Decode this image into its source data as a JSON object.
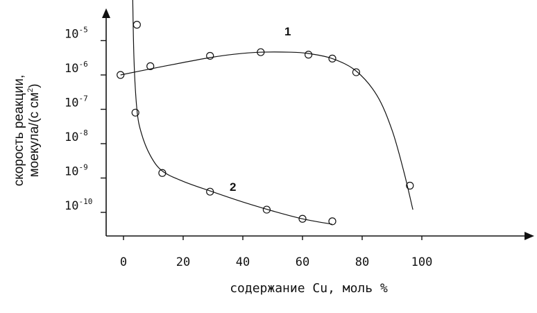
{
  "chart_data": {
    "type": "scatter",
    "title": "",
    "xlabel": "содержание Cu, моль %",
    "ylabel_line1": "скорость реакции,",
    "ylabel_line2_main": "моекула/(с см",
    "ylabel_line2_sup": "2",
    "ylabel_line2_end": ")",
    "x_ticks": [
      "0",
      "20",
      "40",
      "60",
      "80",
      "100"
    ],
    "x_tick_values": [
      0,
      20,
      40,
      60,
      80,
      100
    ],
    "y_ticks": [
      {
        "base": "10",
        "exp": "-5",
        "value": 1e-05
      },
      {
        "base": "10",
        "exp": "-6",
        "value": 1e-06
      },
      {
        "base": "10",
        "exp": "-7",
        "value": 1e-07
      },
      {
        "base": "10",
        "exp": "-8",
        "value": 1e-08
      },
      {
        "base": "10",
        "exp": "-9",
        "value": 1e-09
      },
      {
        "base": "10",
        "exp": "-10",
        "value": 1e-10
      }
    ],
    "y_scale": "log",
    "grid": false,
    "series": [
      {
        "name": "1",
        "points": [
          [
            -1,
            1e-06
          ],
          [
            9,
            1.8e-06
          ],
          [
            29,
            3.6e-06
          ],
          [
            46,
            4.6e-06
          ],
          [
            62,
            3.9e-06
          ],
          [
            70,
            3e-06
          ],
          [
            78,
            1.2e-06
          ],
          [
            96,
            6e-10
          ]
        ],
        "curve": [
          [
            -1,
            1e-06
          ],
          [
            9,
            1.5e-06
          ],
          [
            20,
            2.3e-06
          ],
          [
            29,
            3.2e-06
          ],
          [
            37,
            4e-06
          ],
          [
            46,
            4.6e-06
          ],
          [
            56,
            4.6e-06
          ],
          [
            62,
            4.2e-06
          ],
          [
            70,
            3e-06
          ],
          [
            78,
            1.3e-06
          ],
          [
            85,
            2.5e-07
          ],
          [
            90,
            2.5e-08
          ],
          [
            94,
            1.5e-09
          ],
          [
            97,
            1.2e-10
          ]
        ]
      },
      {
        "name": "2",
        "points": [
          [
            4.5,
            2.9e-05
          ],
          [
            4,
            8e-08
          ],
          [
            13,
            1.4e-09
          ],
          [
            29,
            4e-10
          ],
          [
            48,
            1.2e-10
          ],
          [
            60,
            6.5e-11
          ],
          [
            70,
            5.5e-11
          ]
        ],
        "curve": [
          [
            3,
            0.0005
          ],
          [
            3.5,
            3e-06
          ],
          [
            4.5,
            1e-07
          ],
          [
            6,
            2e-08
          ],
          [
            9,
            4.5e-09
          ],
          [
            13,
            1.6e-09
          ],
          [
            20,
            8e-10
          ],
          [
            29,
            4.2e-10
          ],
          [
            40,
            2e-10
          ],
          [
            50,
            1.1e-10
          ],
          [
            60,
            6.5e-11
          ],
          [
            70,
            4.5e-11
          ]
        ]
      }
    ]
  }
}
